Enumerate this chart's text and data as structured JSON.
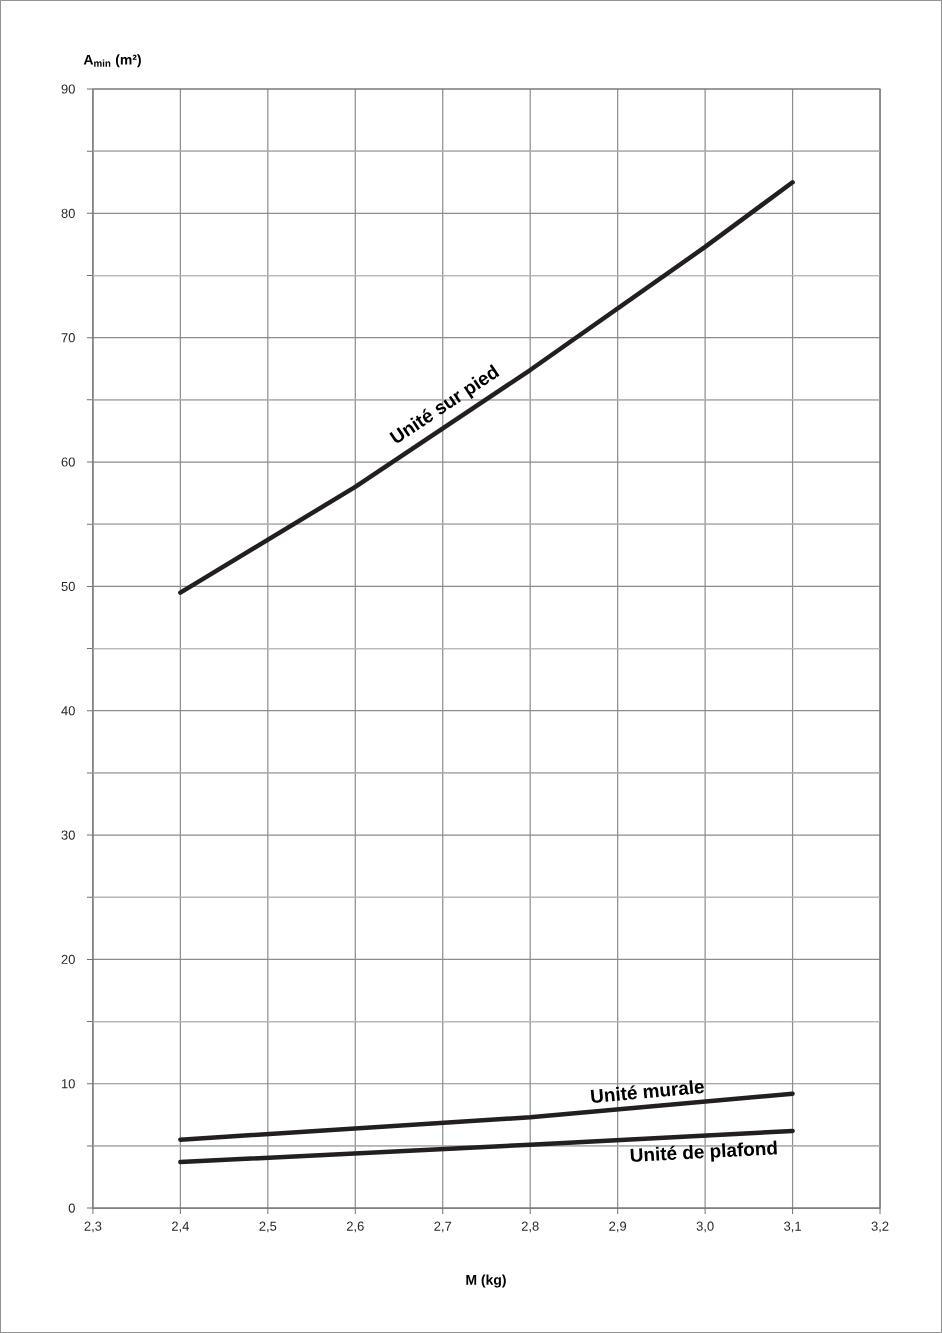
{
  "chart_data": {
    "type": "line",
    "xlabel": "M (kg)",
    "ylabel": "A$_{min}$ (m²)",
    "xlim": [
      2.3,
      3.2
    ],
    "ylim": [
      0,
      90
    ],
    "xticks": [
      {
        "value": 2.3,
        "label": "2,3"
      },
      {
        "value": 2.4,
        "label": "2,4"
      },
      {
        "value": 2.5,
        "label": "2,5"
      },
      {
        "value": 2.6,
        "label": "2,6"
      },
      {
        "value": 2.7,
        "label": "2,7"
      },
      {
        "value": 2.8,
        "label": "2,8"
      },
      {
        "value": 2.9,
        "label": "2,9"
      },
      {
        "value": 3.0,
        "label": "3,0"
      },
      {
        "value": 3.1,
        "label": "3,1"
      },
      {
        "value": 3.2,
        "label": "3,2"
      }
    ],
    "yticks": [
      0,
      {
        "value": 5,
        "label": null
      },
      10,
      {
        "value": 15,
        "label": null
      },
      20,
      {
        "value": 25,
        "label": null
      },
      30,
      {
        "value": 35,
        "label": null
      },
      40,
      {
        "value": 45,
        "label": null
      },
      50,
      {
        "value": 55,
        "label": null
      },
      60,
      {
        "value": 65,
        "label": null
      },
      70,
      {
        "value": 75,
        "label": null
      },
      80,
      {
        "value": 85,
        "label": null
      },
      90
    ],
    "grid": true,
    "marker": "none",
    "line_style": "solid",
    "series": [
      {
        "name": "Unité sur pied",
        "color": "#231f20",
        "x": [
          2.4,
          2.6,
          2.8,
          3.0,
          3.1
        ],
        "values": [
          49.5,
          58.0,
          67.4,
          77.3,
          82.5
        ]
      },
      {
        "name": "Unité murale",
        "color": "#231f20",
        "x": [
          2.4,
          2.8,
          3.1
        ],
        "values": [
          5.5,
          7.3,
          9.2
        ]
      },
      {
        "name": "Unité de plafond",
        "color": "#231f20",
        "x": [
          2.4,
          2.8,
          3.1
        ],
        "values": [
          3.7,
          5.1,
          6.2
        ]
      }
    ]
  }
}
